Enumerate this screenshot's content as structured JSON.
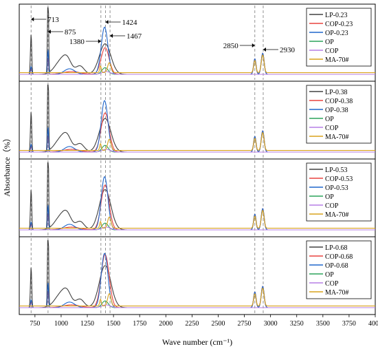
{
  "chart_data": {
    "type": "line",
    "xlabel": "Wave number (cm⁻¹)",
    "ylabel": "Absorbance（%）",
    "xlim": [
      600,
      4000
    ],
    "x_ticks": [
      750,
      1000,
      1250,
      1500,
      1750,
      2000,
      2250,
      2500,
      2750,
      3000,
      3250,
      3500,
      3750,
      4000
    ],
    "reference_lines": [
      713,
      875,
      1380,
      1424,
      1467,
      2850,
      2930
    ],
    "annotations": [
      {
        "text": "713",
        "x": 713,
        "direction": "right"
      },
      {
        "text": "875",
        "x": 875,
        "direction": "right"
      },
      {
        "text": "1380",
        "x": 1380,
        "direction": "left"
      },
      {
        "text": "1424",
        "x": 1424,
        "direction": "right"
      },
      {
        "text": "1467",
        "x": 1467,
        "direction": "right"
      },
      {
        "text": "2850",
        "x": 2850,
        "direction": "left"
      },
      {
        "text": "2930",
        "x": 2930,
        "direction": "right"
      }
    ],
    "series_colors": {
      "LP": "#404040",
      "COP": "#e8423e",
      "OP": "#1f66cc",
      "OP-base": "#2aa35a",
      "COP-base": "#b57ee6",
      "MA-70#": "#d9a21b"
    },
    "panels": [
      {
        "legend": [
          "LP-0.23",
          "COP-0.23",
          "OP-0.23",
          "OP",
          "COP",
          "MA-70#"
        ],
        "peak_rel": {
          "LP": 0.55,
          "COP": 0.48,
          "OP": 0.85,
          "OP-base": 0.12,
          "COP-base": 0.05,
          "MA-70#": 0.18
        }
      },
      {
        "legend": [
          "LP-0.38",
          "COP-0.38",
          "OP-0.38",
          "OP",
          "COP",
          "MA-70#"
        ],
        "peak_rel": {
          "LP": 0.6,
          "COP": 0.7,
          "OP": 0.92,
          "OP-base": 0.12,
          "COP-base": 0.05,
          "MA-70#": 0.2
        }
      },
      {
        "legend": [
          "LP-0.53",
          "COP-0.53",
          "OP-0.53",
          "OP",
          "COP",
          "MA-70#"
        ],
        "peak_rel": {
          "LP": 0.72,
          "COP": 0.8,
          "OP": 0.95,
          "OP-base": 0.12,
          "COP-base": 0.05,
          "MA-70#": 0.2
        }
      },
      {
        "legend": [
          "LP-0.68",
          "COP-0.68",
          "OP-0.68",
          "OP",
          "COP",
          "MA-70#"
        ],
        "peak_rel": {
          "LP": 0.75,
          "COP": 0.95,
          "OP": 0.97,
          "OP-base": 0.12,
          "COP-base": 0.05,
          "MA-70#": 0.22
        }
      }
    ]
  }
}
